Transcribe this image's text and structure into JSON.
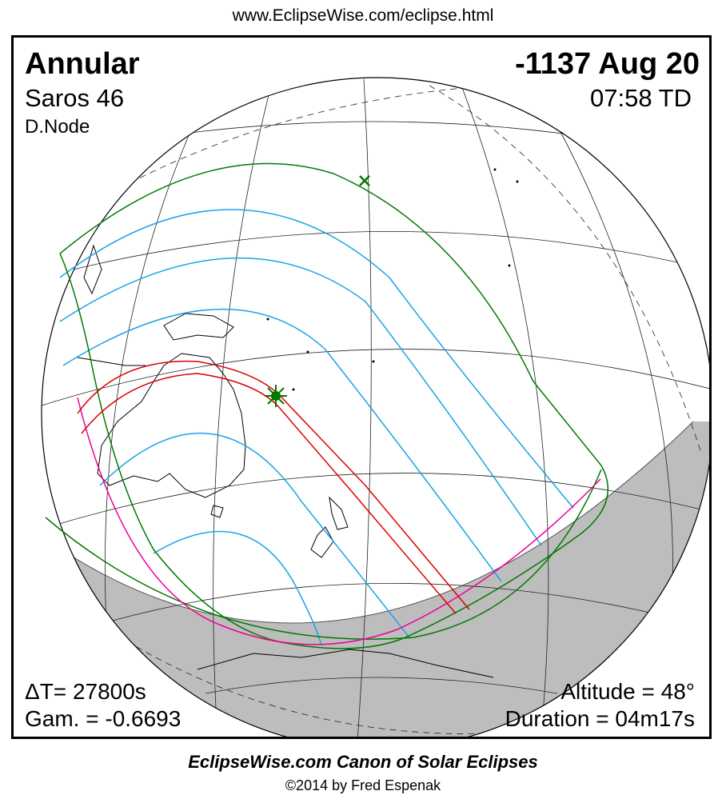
{
  "header": {
    "url": "www.EclipseWise.com/eclipse.html"
  },
  "eclipse": {
    "type": "Annular",
    "saros": "Saros  46",
    "node": "D.Node",
    "date": "-1137 Aug 20",
    "time": "07:58 TD",
    "delta_t": "ΔT=  27800s",
    "gamma": "Gam. = -0.6693",
    "altitude": "Altitude = 48°",
    "duration": "Duration = 04m17s"
  },
  "footer": {
    "canon": "EclipseWise.com Canon of Solar Eclipses",
    "copyright": "©2014 by Fred Espenak"
  },
  "colors": {
    "central_path": "#dd0000",
    "penumbra_limits": "#007a00",
    "magnitude_lines": "#1aa3e8",
    "rise_set": "#ee0099",
    "night_shade": "#bdbdbd",
    "greatest_eclipse_marker": "#007a00"
  },
  "icons": {
    "greatest_eclipse": "star-burst-icon",
    "subsolar_point": "x-cross-icon"
  }
}
